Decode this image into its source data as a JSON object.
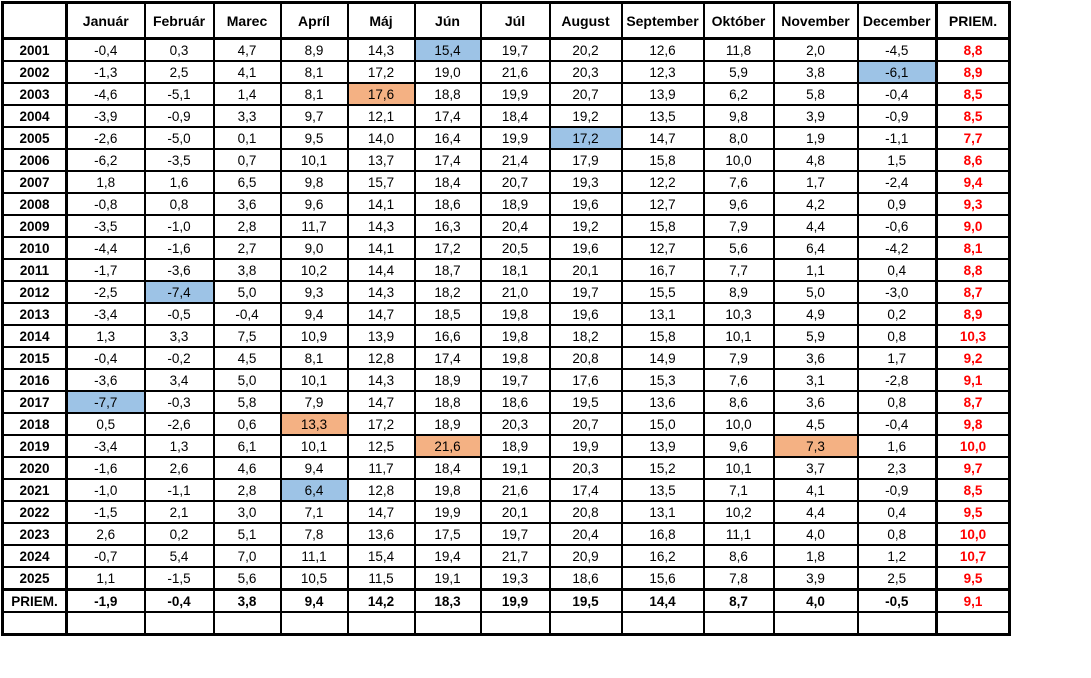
{
  "table": {
    "corner_label": "",
    "columns": [
      "Január",
      "Február",
      "Marec",
      "Apríl",
      "Máj",
      "Jún",
      "Júl",
      "August",
      "September",
      "Október",
      "November",
      "December",
      "PRIEM."
    ],
    "rows": [
      {
        "label": "2001",
        "values": [
          "-0,4",
          "0,3",
          "4,7",
          "8,9",
          "14,3",
          "15,4",
          "19,7",
          "20,2",
          "12,6",
          "11,8",
          "2,0",
          "-4,5",
          "8,8"
        ]
      },
      {
        "label": "2002",
        "values": [
          "-1,3",
          "2,5",
          "4,1",
          "8,1",
          "17,2",
          "19,0",
          "21,6",
          "20,3",
          "12,3",
          "5,9",
          "3,8",
          "-6,1",
          "8,9"
        ]
      },
      {
        "label": "2003",
        "values": [
          "-4,6",
          "-5,1",
          "1,4",
          "8,1",
          "17,6",
          "18,8",
          "19,9",
          "20,7",
          "13,9",
          "6,2",
          "5,8",
          "-0,4",
          "8,5"
        ]
      },
      {
        "label": "2004",
        "values": [
          "-3,9",
          "-0,9",
          "3,3",
          "9,7",
          "12,1",
          "17,4",
          "18,4",
          "19,2",
          "13,5",
          "9,8",
          "3,9",
          "-0,9",
          "8,5"
        ]
      },
      {
        "label": "2005",
        "values": [
          "-2,6",
          "-5,0",
          "0,1",
          "9,5",
          "14,0",
          "16,4",
          "19,9",
          "17,2",
          "14,7",
          "8,0",
          "1,9",
          "-1,1",
          "7,7"
        ]
      },
      {
        "label": "2006",
        "values": [
          "-6,2",
          "-3,5",
          "0,7",
          "10,1",
          "13,7",
          "17,4",
          "21,4",
          "17,9",
          "15,8",
          "10,0",
          "4,8",
          "1,5",
          "8,6"
        ]
      },
      {
        "label": "2007",
        "values": [
          "1,8",
          "1,6",
          "6,5",
          "9,8",
          "15,7",
          "18,4",
          "20,7",
          "19,3",
          "12,2",
          "7,6",
          "1,7",
          "-2,4",
          "9,4"
        ]
      },
      {
        "label": "2008",
        "values": [
          "-0,8",
          "0,8",
          "3,6",
          "9,6",
          "14,1",
          "18,6",
          "18,9",
          "19,6",
          "12,7",
          "9,6",
          "4,2",
          "0,9",
          "9,3"
        ]
      },
      {
        "label": "2009",
        "values": [
          "-3,5",
          "-1,0",
          "2,8",
          "11,7",
          "14,3",
          "16,3",
          "20,4",
          "19,2",
          "15,8",
          "7,9",
          "4,4",
          "-0,6",
          "9,0"
        ]
      },
      {
        "label": "2010",
        "values": [
          "-4,4",
          "-1,6",
          "2,7",
          "9,0",
          "14,1",
          "17,2",
          "20,5",
          "19,6",
          "12,7",
          "5,6",
          "6,4",
          "-4,2",
          "8,1"
        ]
      },
      {
        "label": "2011",
        "values": [
          "-1,7",
          "-3,6",
          "3,8",
          "10,2",
          "14,4",
          "18,7",
          "18,1",
          "20,1",
          "16,7",
          "7,7",
          "1,1",
          "0,4",
          "8,8"
        ]
      },
      {
        "label": "2012",
        "values": [
          "-2,5",
          "-7,4",
          "5,0",
          "9,3",
          "14,3",
          "18,2",
          "21,0",
          "19,7",
          "15,5",
          "8,9",
          "5,0",
          "-3,0",
          "8,7"
        ]
      },
      {
        "label": "2013",
        "values": [
          "-3,4",
          "-0,5",
          "-0,4",
          "9,4",
          "14,7",
          "18,5",
          "19,8",
          "19,6",
          "13,1",
          "10,3",
          "4,9",
          "0,2",
          "8,9"
        ]
      },
      {
        "label": "2014",
        "values": [
          "1,3",
          "3,3",
          "7,5",
          "10,9",
          "13,9",
          "16,6",
          "19,8",
          "18,2",
          "15,8",
          "10,1",
          "5,9",
          "0,8",
          "10,3"
        ]
      },
      {
        "label": "2015",
        "values": [
          "-0,4",
          "-0,2",
          "4,5",
          "8,1",
          "12,8",
          "17,4",
          "19,8",
          "20,8",
          "14,9",
          "7,9",
          "3,6",
          "1,7",
          "9,2"
        ]
      },
      {
        "label": "2016",
        "values": [
          "-3,6",
          "3,4",
          "5,0",
          "10,1",
          "14,3",
          "18,9",
          "19,7",
          "17,6",
          "15,3",
          "7,6",
          "3,1",
          "-2,8",
          "9,1"
        ]
      },
      {
        "label": "2017",
        "values": [
          "-7,7",
          "-0,3",
          "5,8",
          "7,9",
          "14,7",
          "18,8",
          "18,6",
          "19,5",
          "13,6",
          "8,6",
          "3,6",
          "0,8",
          "8,7"
        ]
      },
      {
        "label": "2018",
        "values": [
          "0,5",
          "-2,6",
          "0,6",
          "13,3",
          "17,2",
          "18,9",
          "20,3",
          "20,7",
          "15,0",
          "10,0",
          "4,5",
          "-0,4",
          "9,8"
        ]
      },
      {
        "label": "2019",
        "values": [
          "-3,4",
          "1,3",
          "6,1",
          "10,1",
          "12,5",
          "21,6",
          "18,9",
          "19,9",
          "13,9",
          "9,6",
          "7,3",
          "1,6",
          "10,0"
        ]
      },
      {
        "label": "2020",
        "values": [
          "-1,6",
          "2,6",
          "4,6",
          "9,4",
          "11,7",
          "18,4",
          "19,1",
          "20,3",
          "15,2",
          "10,1",
          "3,7",
          "2,3",
          "9,7"
        ]
      },
      {
        "label": "2021",
        "values": [
          "-1,0",
          "-1,1",
          "2,8",
          "6,4",
          "12,8",
          "19,8",
          "21,6",
          "17,4",
          "13,5",
          "7,1",
          "4,1",
          "-0,9",
          "8,5"
        ]
      },
      {
        "label": "2022",
        "values": [
          "-1,5",
          "2,1",
          "3,0",
          "7,1",
          "14,7",
          "19,9",
          "20,1",
          "20,8",
          "13,1",
          "10,2",
          "4,4",
          "0,4",
          "9,5"
        ]
      },
      {
        "label": "2023",
        "values": [
          "2,6",
          "0,2",
          "5,1",
          "7,8",
          "13,6",
          "17,5",
          "19,7",
          "20,4",
          "16,8",
          "11,1",
          "4,0",
          "0,8",
          "10,0"
        ]
      },
      {
        "label": "2024",
        "values": [
          "-0,7",
          "5,4",
          "7,0",
          "11,1",
          "15,4",
          "19,4",
          "21,7",
          "20,9",
          "16,2",
          "8,6",
          "1,8",
          "1,2",
          "10,7"
        ]
      },
      {
        "label": "2025",
        "values": [
          "1,1",
          "-1,5",
          "5,6",
          "10,5",
          "11,5",
          "19,1",
          "19,3",
          "18,6",
          "15,6",
          "7,8",
          "3,9",
          "2,5",
          "9,5"
        ]
      }
    ],
    "footer": {
      "label": "PRIEM.",
      "values": [
        "-1,9",
        "-0,4",
        "3,8",
        "9,4",
        "14,2",
        "18,3",
        "19,9",
        "19,5",
        "14,4",
        "8,7",
        "4,0",
        "-0,5",
        "9,1"
      ]
    },
    "highlights": {
      "blue": [
        [
          0,
          5
        ],
        [
          1,
          11
        ],
        [
          4,
          7
        ],
        [
          11,
          1
        ],
        [
          16,
          0
        ],
        [
          20,
          3
        ]
      ],
      "orange": [
        [
          2,
          4
        ],
        [
          17,
          3
        ],
        [
          18,
          5
        ],
        [
          18,
          10
        ]
      ]
    },
    "colors": {
      "highlight_blue": "#9DC3E6",
      "highlight_orange": "#F4B183",
      "average_text": "#FF0000",
      "border": "#000000"
    }
  }
}
